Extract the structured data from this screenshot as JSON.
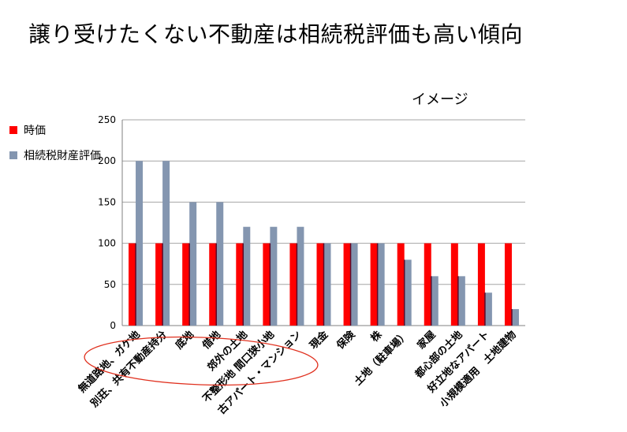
{
  "page": {
    "title": "譲り受けたくない不動産は相続税評価も高い傾向",
    "subtitle": "イメージ"
  },
  "colors": {
    "series1": "#ff0000",
    "series2": "#8496b0",
    "grid": "#a6a6a6",
    "ellipse": "#e0301e"
  },
  "chart_data": {
    "type": "bar",
    "title": "",
    "xlabel": "",
    "ylabel": "",
    "ylim": [
      0,
      250
    ],
    "yticks": [
      0,
      50,
      100,
      150,
      200,
      250
    ],
    "grid": true,
    "legend_position": "left",
    "categories": [
      "無道路地、ガケ地",
      "別荘、共有不動産持分",
      "底地",
      "借地",
      "郊外の土地",
      "不整形地 間口狭小地",
      "古アパート・マンション",
      "現金",
      "保険",
      "株",
      "土地（駐車場）",
      "家屋",
      "都心部の土地",
      "好立地なアパート",
      "小規模適用　土地建物"
    ],
    "series": [
      {
        "name": "時価",
        "values": [
          100,
          100,
          100,
          100,
          100,
          100,
          100,
          100,
          100,
          100,
          100,
          100,
          100,
          100,
          100
        ]
      },
      {
        "name": "相続税財産評価",
        "values": [
          200,
          200,
          150,
          150,
          120,
          120,
          120,
          100,
          100,
          100,
          80,
          60,
          60,
          40,
          20
        ]
      }
    ]
  }
}
